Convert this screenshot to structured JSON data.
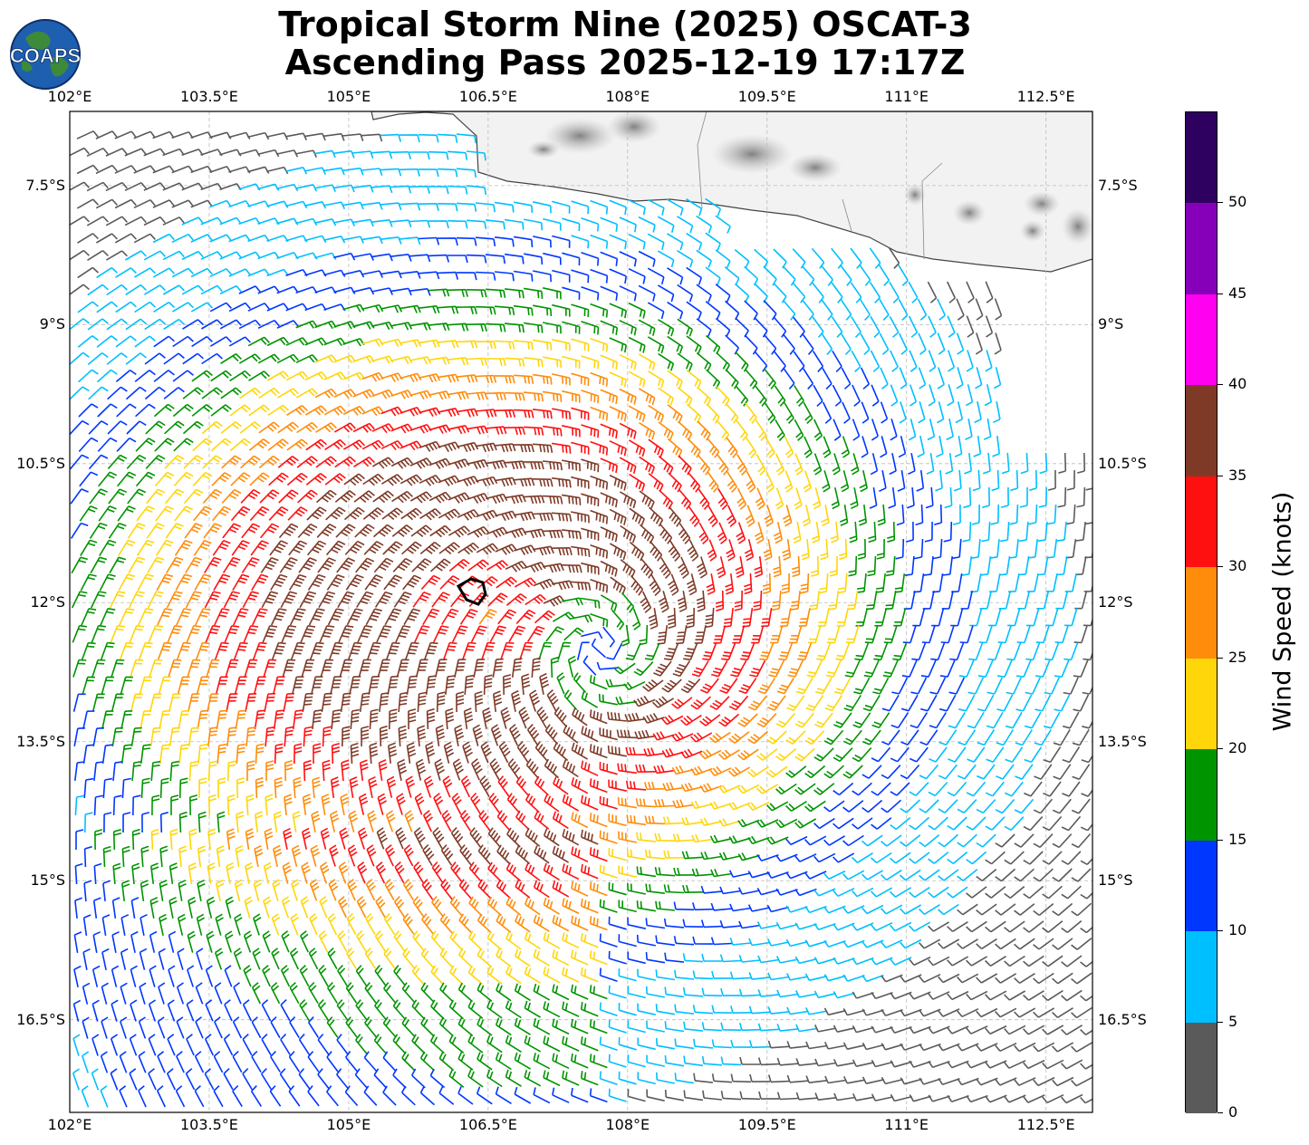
{
  "title": {
    "line1": "Tropical Storm Nine (2025) OSCAT-3",
    "line2": "Ascending Pass 2025-12-19 17:17Z"
  },
  "logo": {
    "text": "COAPS",
    "icon": "globe-logo-icon"
  },
  "map": {
    "lon_range": [
      102.0,
      113.0
    ],
    "lat_range": [
      -17.5,
      -6.7
    ],
    "lon_ticks": [
      "102°E",
      "103.5°E",
      "105°E",
      "106.5°E",
      "108°E",
      "109.5°E",
      "111°E",
      "112.5°E"
    ],
    "lon_tick_values": [
      102.0,
      103.5,
      105.0,
      106.5,
      108.0,
      109.5,
      111.0,
      112.5
    ],
    "lat_ticks": [
      "7.5°S",
      "9°S",
      "10.5°S",
      "12°S",
      "13.5°S",
      "15°S",
      "16.5°S"
    ],
    "lat_tick_values": [
      -7.5,
      -9.0,
      -10.5,
      -12.0,
      -13.5,
      -15.0,
      -16.5
    ],
    "gridlines": true,
    "land": "Java",
    "storm_center": {
      "lon": 107.7,
      "lat": -12.5
    }
  },
  "colorbar": {
    "title": "Wind Speed (knots)",
    "labels": [
      "0",
      "5",
      "10",
      "15",
      "20",
      "25",
      "30",
      "35",
      "40",
      "45",
      "50"
    ],
    "bins": [
      {
        "min": 0,
        "max": 5,
        "color": "#5a5a5a"
      },
      {
        "min": 5,
        "max": 10,
        "color": "#00bfff"
      },
      {
        "min": 10,
        "max": 15,
        "color": "#0037ff"
      },
      {
        "min": 15,
        "max": 20,
        "color": "#009400"
      },
      {
        "min": 20,
        "max": 25,
        "color": "#ffd60a"
      },
      {
        "min": 25,
        "max": 30,
        "color": "#ff8c0a"
      },
      {
        "min": 30,
        "max": 35,
        "color": "#ff1010"
      },
      {
        "min": 35,
        "max": 40,
        "color": "#7f3a27"
      },
      {
        "min": 40,
        "max": 45,
        "color": "#ff00f0"
      },
      {
        "min": 45,
        "max": 50,
        "color": "#8500b8"
      },
      {
        "min": 50,
        "max": 55,
        "color": "#2e0060"
      }
    ]
  }
}
